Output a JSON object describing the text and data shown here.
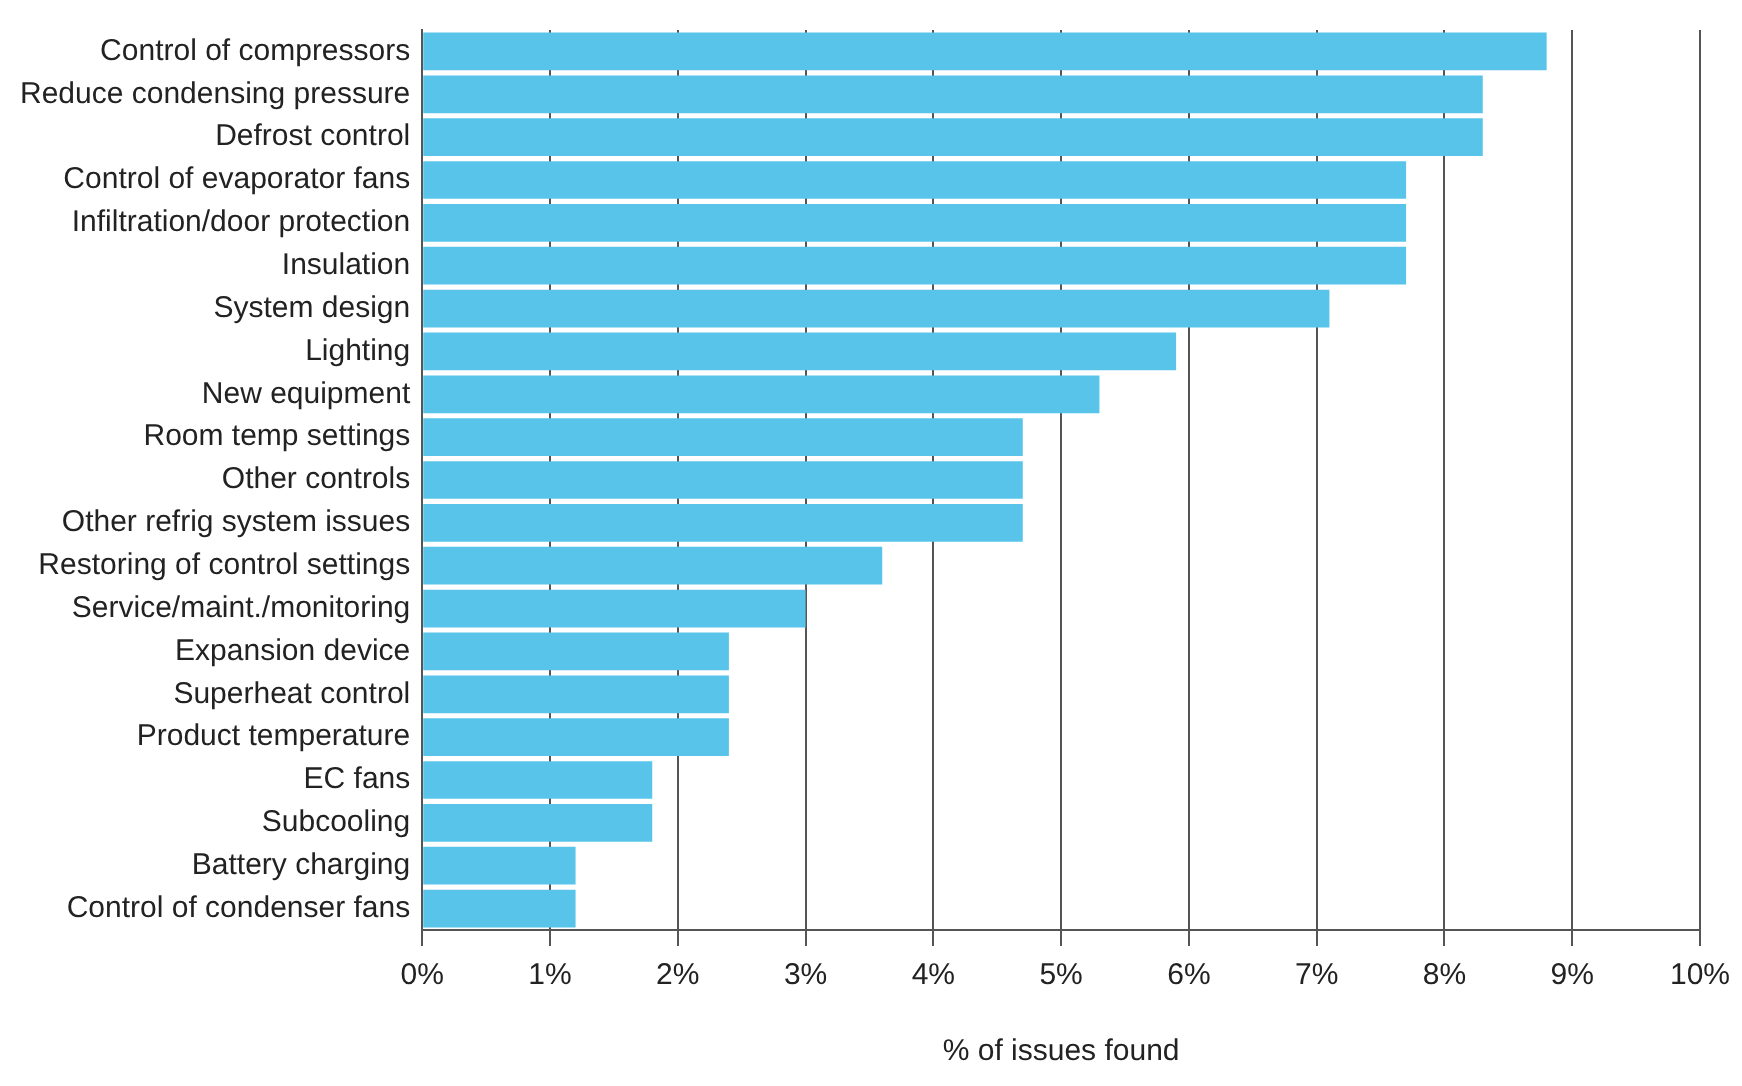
{
  "chart_data": {
    "type": "bar",
    "orientation": "horizontal",
    "xlabel": "% of issues found",
    "categories": [
      "Control of compressors",
      "Reduce condensing pressure",
      "Defrost control",
      "Control of evaporator fans",
      "Infiltration/door protection",
      "Insulation",
      "System design",
      "Lighting",
      "New equipment",
      "Room temp settings",
      "Other controls",
      "Other refrig system issues",
      "Restoring of control settings",
      "Service/maint./monitoring",
      "Expansion device",
      "Superheat control",
      "Product temperature",
      "EC fans",
      "Subcooling",
      "Battery charging",
      "Control of condenser fans"
    ],
    "values": [
      8.8,
      8.3,
      8.3,
      7.7,
      7.7,
      7.7,
      7.1,
      5.9,
      5.3,
      4.7,
      4.7,
      4.7,
      3.6,
      3.0,
      2.4,
      2.4,
      2.4,
      1.8,
      1.8,
      1.2,
      1.2
    ],
    "color": "#58c4ea",
    "xlim": [
      0,
      10
    ],
    "xticks": [
      {
        "value": 0,
        "label": "0%"
      },
      {
        "value": 1,
        "label": "1%"
      },
      {
        "value": 2,
        "label": "2%"
      },
      {
        "value": 3,
        "label": "3%"
      },
      {
        "value": 4,
        "label": "4%"
      },
      {
        "value": 5,
        "label": "5%"
      },
      {
        "value": 6,
        "label": "6%"
      },
      {
        "value": 7,
        "label": "7%"
      },
      {
        "value": 8,
        "label": "8%"
      },
      {
        "value": 9,
        "label": "9%"
      },
      {
        "value": 10,
        "label": "10%"
      }
    ],
    "grid": "x",
    "legend": false
  }
}
